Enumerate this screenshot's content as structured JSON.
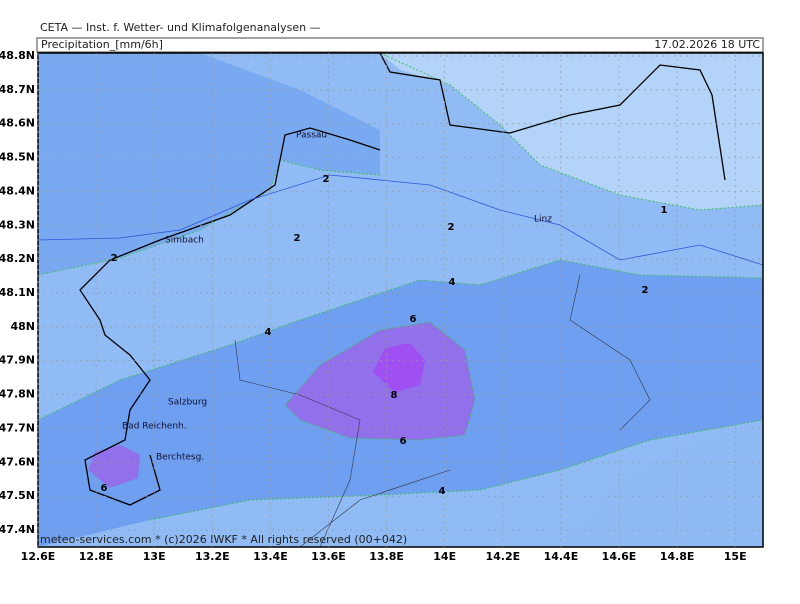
{
  "header": {
    "title": "CETA — Inst. f. Wetter- und Klimafolgenanalysen —",
    "variable": "Precipitation_[mm/6h]",
    "valid": "17.02.2026 18 UTC"
  },
  "map": {
    "lat_labels": [
      "48.8N",
      "48.7N",
      "48.6N",
      "48.5N",
      "48.4N",
      "48.3N",
      "48.2N",
      "48.1N",
      "48N",
      "47.9N",
      "47.8N",
      "47.7N",
      "47.6N",
      "47.5N",
      "47.4N"
    ],
    "lon_labels": [
      "12.6E",
      "12.8E",
      "13E",
      "13.2E",
      "13.4E",
      "13.6E",
      "13.8E",
      "14E",
      "14.2E",
      "14.4E",
      "14.6E",
      "14.8E",
      "15E"
    ],
    "places": [
      "Passau",
      "Simbach",
      "Linz",
      "Salzburg",
      "Bad Reichenh.",
      "Berchtesg."
    ],
    "contour_labels": [
      2,
      2,
      2,
      2,
      1,
      2,
      4,
      4,
      6,
      8,
      6,
      6,
      4
    ]
  },
  "footer": "meteo-services.com * (c)2026 IWKF * All rights reserved (00+042)"
}
